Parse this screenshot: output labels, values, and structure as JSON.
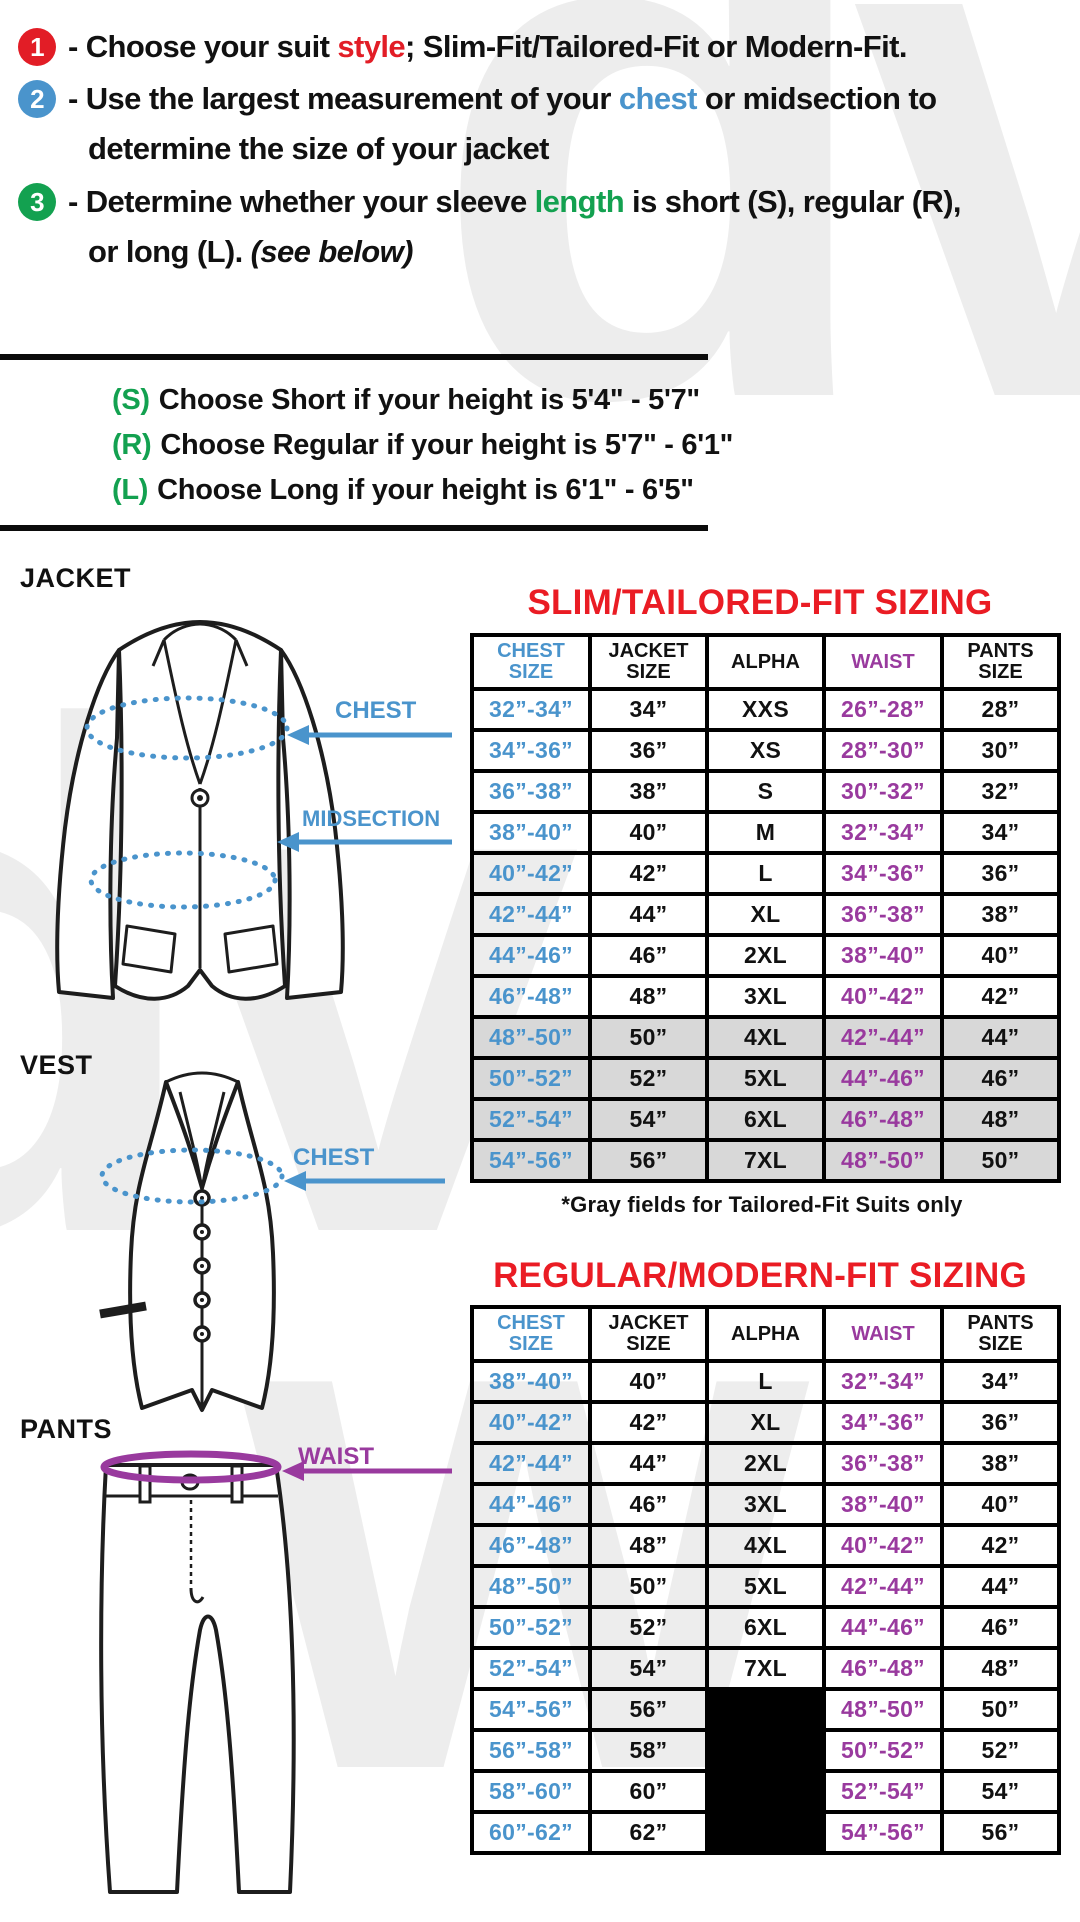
{
  "colors": {
    "accent_red": "#e21d26",
    "accent_blue": "#4a94cc",
    "accent_green": "#13a150",
    "accent_purple": "#993a9e",
    "title_red": "#ea1c24",
    "gray_row": "#d8d8d8",
    "black_cell": "#000000"
  },
  "instructions": {
    "step1": {
      "num": "1",
      "pre": "- Choose your suit ",
      "highlight": "style",
      "post": "; Slim-Fit/Tailored-Fit or Modern-Fit."
    },
    "step2": {
      "num": "2",
      "pre": "- Use the largest measurement of your ",
      "highlight": "chest",
      "post": " or midsection to"
    },
    "step2_cont": "determine the size of your jacket",
    "step3": {
      "num": "3",
      "pre": "- Determine whether your sleeve ",
      "highlight": "length",
      "post": " is short (S), regular (R),"
    },
    "step3_cont_pre": "or long (L). ",
    "step3_cont_italic": "(see below)"
  },
  "height_guide": {
    "short": {
      "key": "(S)",
      "text": "Choose Short if your height is 5'4\" - 5'7\""
    },
    "regular": {
      "key": "(R)",
      "text": "Choose Regular if your height is  5'7\" - 6'1\""
    },
    "long": {
      "key": "(L)",
      "text": "Choose Long if your height is  6'1\" - 6'5\""
    }
  },
  "diagrams": {
    "jacket": {
      "label": "JACKET",
      "chest": "CHEST",
      "midsection": "MIDSECTION"
    },
    "vest": {
      "label": "VEST",
      "chest": "CHEST"
    },
    "pants": {
      "label": "PANTS",
      "waist": "WAIST"
    }
  },
  "slim_table": {
    "title": "SLIM/TAILORED-FIT SIZING",
    "headers": [
      {
        "top": "CHEST",
        "bot": "SIZE"
      },
      {
        "top": "JACKET",
        "bot": "SIZE"
      },
      {
        "top": "ALPHA",
        "bot": ""
      },
      {
        "top": "WAIST",
        "bot": ""
      },
      {
        "top": "PANTS",
        "bot": "SIZE"
      }
    ],
    "col_keys": [
      "chest-size",
      "jacket-size",
      "alpha",
      "waist",
      "pants-size"
    ],
    "rows": [
      [
        "32”-34”",
        "34”",
        "XXS",
        "26”-28”",
        "28”"
      ],
      [
        "34”-36”",
        "36”",
        "XS",
        "28”-30”",
        "30”"
      ],
      [
        "36”-38”",
        "38”",
        "S",
        "30”-32”",
        "32”"
      ],
      [
        "38”-40”",
        "40”",
        "M",
        "32”-34”",
        "34”"
      ],
      [
        "40”-42”",
        "42”",
        "L",
        "34”-36”",
        "36”"
      ],
      [
        "42”-44”",
        "44”",
        "XL",
        "36”-38”",
        "38”"
      ],
      [
        "44”-46”",
        "46”",
        "2XL",
        "38”-40”",
        "40”"
      ],
      [
        "46”-48”",
        "48”",
        "3XL",
        "40”-42”",
        "42”"
      ],
      [
        "48”-50”",
        "50”",
        "4XL",
        "42”-44”",
        "44”"
      ],
      [
        "50”-52”",
        "52”",
        "5XL",
        "44”-46”",
        "46”"
      ],
      [
        "52”-54”",
        "54”",
        "6XL",
        "46”-48”",
        "48”"
      ],
      [
        "54”-56”",
        "56”",
        "7XL",
        "48”-50”",
        "50”"
      ]
    ],
    "gray_from": 8,
    "footnote": "*Gray fields for Tailored-Fit Suits only"
  },
  "regular_table": {
    "title": "REGULAR/MODERN-FIT SIZING",
    "headers": [
      {
        "top": "CHEST",
        "bot": "SIZE"
      },
      {
        "top": "JACKET",
        "bot": "SIZE"
      },
      {
        "top": "ALPHA",
        "bot": ""
      },
      {
        "top": "WAIST",
        "bot": ""
      },
      {
        "top": "PANTS",
        "bot": "SIZE"
      }
    ],
    "col_keys": [
      "chest-size",
      "jacket-size",
      "alpha",
      "waist",
      "pants-size"
    ],
    "rows": [
      [
        "38”-40”",
        "40”",
        "L",
        "32”-34”",
        "34”"
      ],
      [
        "40”-42”",
        "42”",
        "XL",
        "34”-36”",
        "36”"
      ],
      [
        "42”-44”",
        "44”",
        "2XL",
        "36”-38”",
        "38”"
      ],
      [
        "44”-46”",
        "46”",
        "3XL",
        "38”-40”",
        "40”"
      ],
      [
        "46”-48”",
        "48”",
        "4XL",
        "40”-42”",
        "42”"
      ],
      [
        "48”-50”",
        "50”",
        "5XL",
        "42”-44”",
        "44”"
      ],
      [
        "50”-52”",
        "52”",
        "6XL",
        "44”-46”",
        "46”"
      ],
      [
        "52”-54”",
        "54”",
        "7XL",
        "46”-48”",
        "48”"
      ],
      [
        "54”-56”",
        "56”",
        "",
        "48”-50”",
        "50”"
      ],
      [
        "56”-58”",
        "58”",
        "",
        "50”-52”",
        "52”"
      ],
      [
        "58”-60”",
        "60”",
        "",
        "52”-54”",
        "54”"
      ],
      [
        "60”-62”",
        "62”",
        "",
        "54”-56”",
        "56”"
      ]
    ],
    "black_alpha_from": 8
  }
}
